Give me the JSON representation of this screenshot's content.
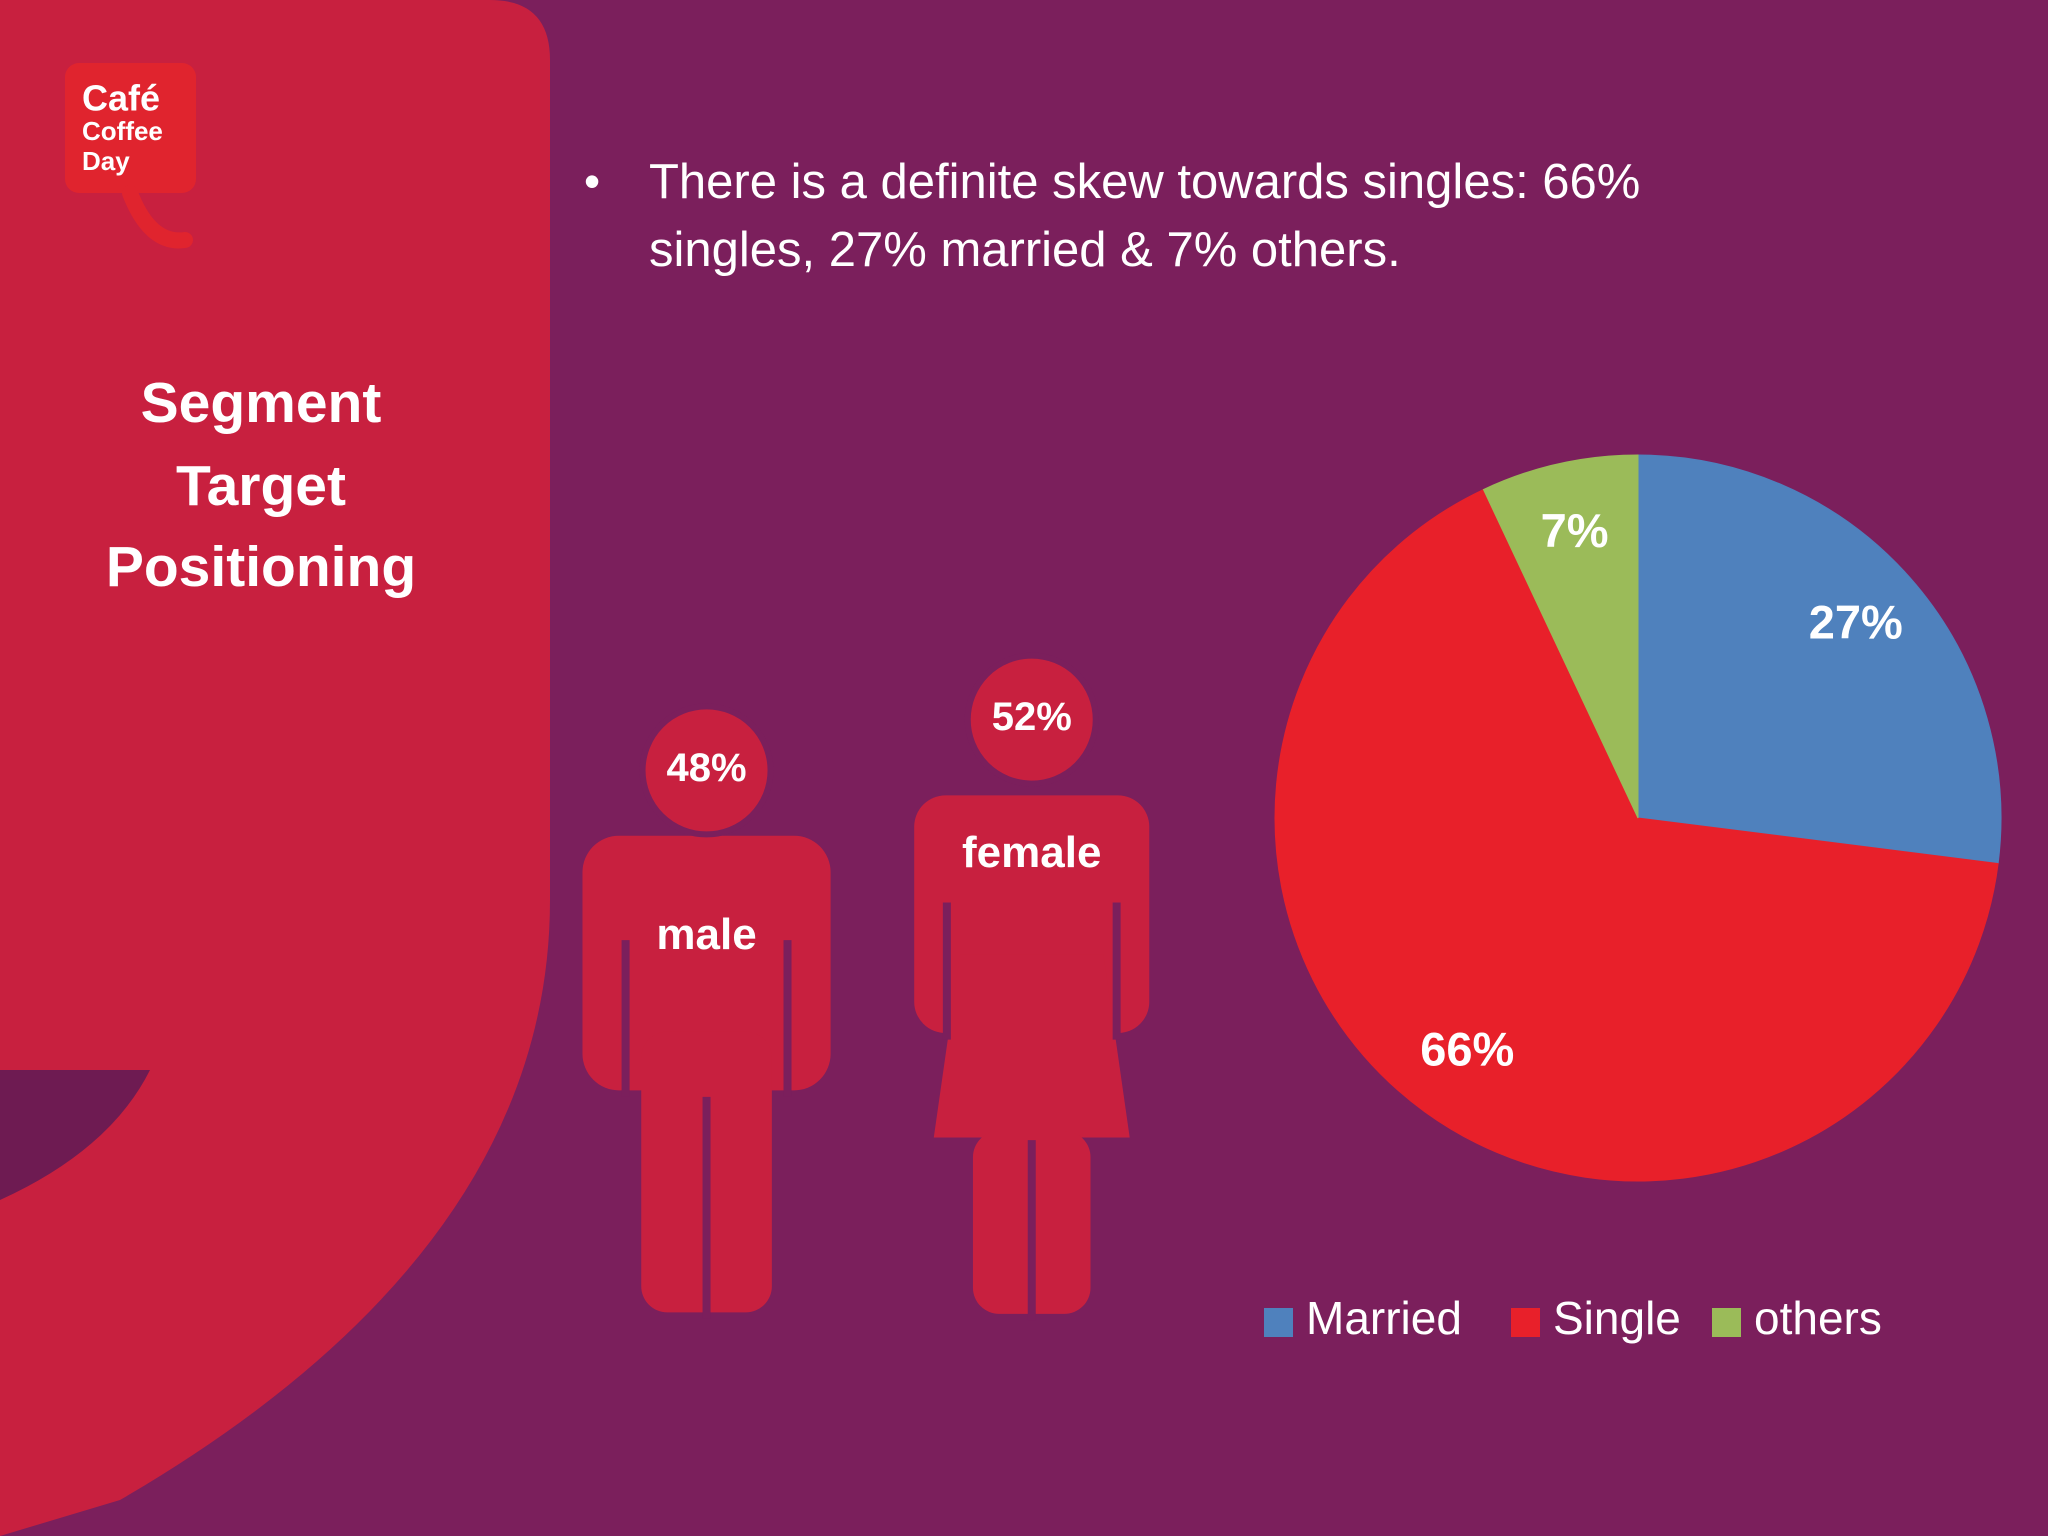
{
  "logo": {
    "lines": [
      "Café",
      "Coffee",
      "Day"
    ]
  },
  "title_lines": [
    "Segment",
    "Target",
    "Positioning"
  ],
  "bullet": "•",
  "bullet_lines": [
    "There is a definite skew towards singles: 66%",
    "singles, 27% married & 7% others."
  ],
  "chart_data": [
    {
      "type": "pictogram",
      "categories": [
        "male",
        "female"
      ],
      "values": [
        48,
        52
      ],
      "value_labels": [
        "48%",
        "52%"
      ],
      "color": "#c8203f"
    },
    {
      "type": "pie",
      "categories": [
        "Married",
        "Single",
        "others"
      ],
      "values": [
        27,
        66,
        7
      ],
      "value_labels": [
        "27%",
        "66%",
        "7%"
      ],
      "colors": [
        "#4f81bd",
        "#e8202a",
        "#9bbb59"
      ],
      "legend": "bottom"
    }
  ]
}
